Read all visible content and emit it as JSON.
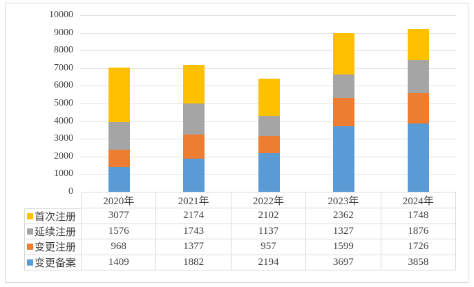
{
  "chart_data": {
    "type": "bar",
    "stacked": true,
    "title": "",
    "xlabel": "",
    "ylabel": "",
    "categories": [
      "2020年",
      "2021年",
      "2022年",
      "2023年",
      "2024年"
    ],
    "series": [
      {
        "name": "首次注册",
        "color": "#FFC000",
        "values": [
          3077,
          2174,
          2102,
          2362,
          1748
        ]
      },
      {
        "name": "延续注册",
        "color": "#A5A5A5",
        "values": [
          1576,
          1743,
          1137,
          1327,
          1876
        ]
      },
      {
        "name": "变更注册",
        "color": "#ED7D31",
        "values": [
          968,
          1377,
          957,
          1599,
          1726
        ]
      },
      {
        "name": "变更备案",
        "color": "#5B9BD5",
        "values": [
          1409,
          1882,
          2194,
          3697,
          3858
        ]
      }
    ],
    "stack_order_bottom_to_top": [
      "变更备案",
      "变更注册",
      "延续注册",
      "首次注册"
    ],
    "ylim": [
      0,
      10000
    ],
    "yticks": [
      0,
      1000,
      2000,
      3000,
      4000,
      5000,
      6000,
      7000,
      8000,
      9000,
      10000
    ],
    "grid": true,
    "legend_position": "data-table-left-column",
    "data_table_shown": true
  },
  "colors": {
    "grid": "#E2E2E2",
    "table_border": "#D9D9D9",
    "frame_border": "#D9D9D9",
    "text": "#404040",
    "background": "#FFFFFF"
  }
}
